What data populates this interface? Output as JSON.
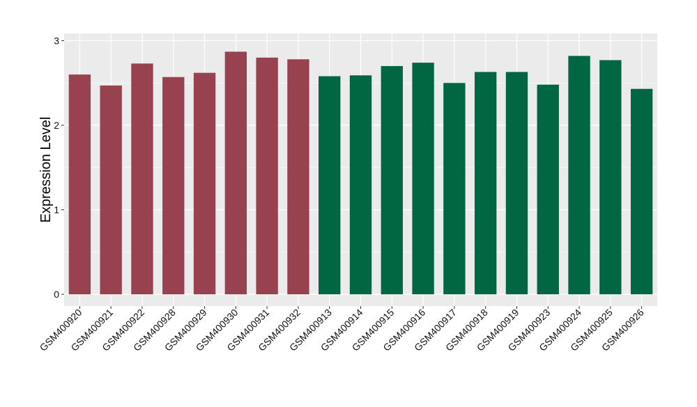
{
  "chart_data": {
    "type": "bar",
    "title": "",
    "xlabel": "",
    "ylabel": "Expression Level",
    "ylim": [
      0,
      3
    ],
    "yticks": [
      0,
      1,
      2,
      3
    ],
    "grid": true,
    "legend": "none",
    "categories": [
      "GSM400920",
      "GSM400921",
      "GSM400922",
      "GSM400928",
      "GSM400929",
      "GSM400930",
      "GSM400931",
      "GSM400932",
      "GSM400913",
      "GSM400914",
      "GSM400915",
      "GSM400916",
      "GSM400917",
      "GSM400918",
      "GSM400919",
      "GSM400923",
      "GSM400924",
      "GSM400925",
      "GSM400926"
    ],
    "values": [
      2.6,
      2.47,
      2.73,
      2.57,
      2.62,
      2.87,
      2.8,
      2.78,
      2.58,
      2.59,
      2.7,
      2.74,
      2.5,
      2.63,
      2.63,
      2.48,
      2.82,
      2.77,
      2.43
    ],
    "bar_colors": [
      "#98424F",
      "#98424F",
      "#98424F",
      "#98424F",
      "#98424F",
      "#98424F",
      "#98424F",
      "#98424F",
      "#006743",
      "#006743",
      "#006743",
      "#006743",
      "#006743",
      "#006743",
      "#006743",
      "#006743",
      "#006743",
      "#006743",
      "#006743"
    ],
    "panel_background": "#EBEBEB",
    "grid_color": "#FFFFFF"
  }
}
